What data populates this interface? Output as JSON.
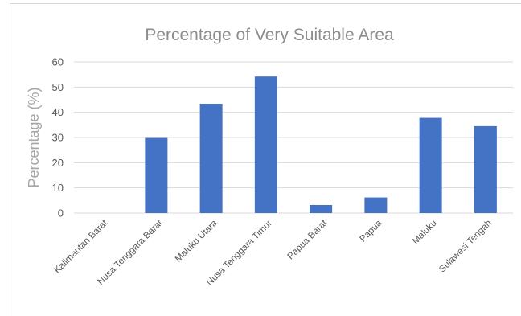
{
  "chart_data": {
    "type": "bar",
    "title": "Percentage of Very Suitable Area",
    "xlabel": "",
    "ylabel": "Percentage (%)",
    "categories": [
      "Kalimantan Barat",
      "Nusa Tenggara Barat",
      "Maluku Utara",
      "Nusa Tenggara Timur",
      "Papua Barat",
      "Papua",
      "Maluku",
      "Sulawesi Tengah"
    ],
    "values": [
      0,
      29.8,
      43.4,
      54.2,
      3.2,
      6.2,
      37.8,
      34.5
    ],
    "ylim": [
      0,
      60
    ],
    "yticks": [
      "0",
      "10",
      "20",
      "30",
      "40",
      "50",
      "60"
    ],
    "grid": true,
    "legend": "none",
    "colors": {
      "bar": "#4472c4",
      "grid": "#d9d9d9",
      "title": "#8c8c8c",
      "axis_label": "#a6a6a6",
      "tick_label": "#595959"
    }
  }
}
